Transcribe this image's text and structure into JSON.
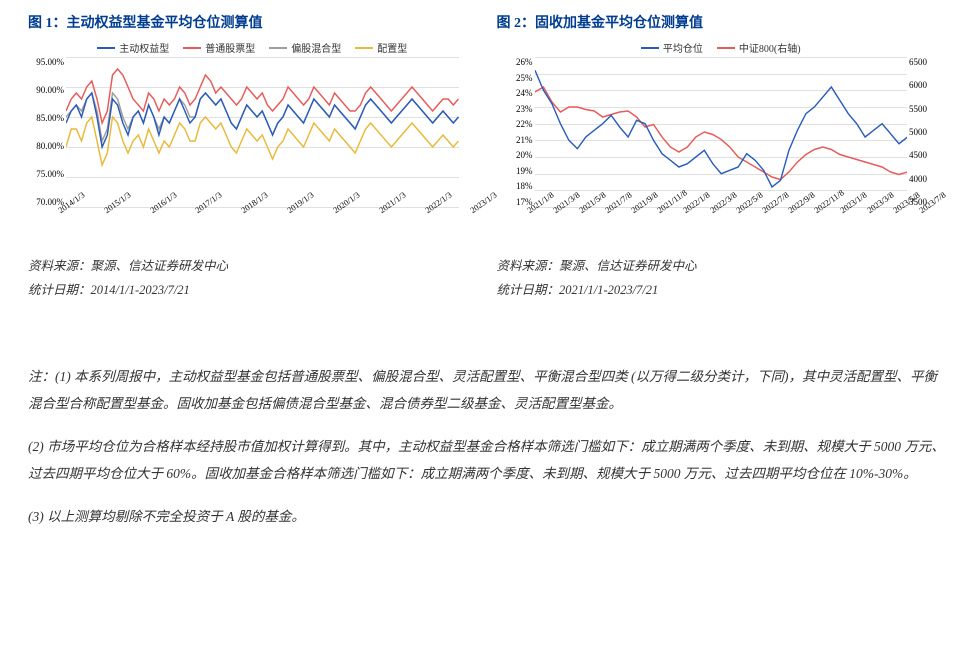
{
  "chart1": {
    "title": "图 1：主动权益型基金平均仓位测算值",
    "type": "line",
    "legend": [
      {
        "label": "主动权益型",
        "color": "#2a5cbb"
      },
      {
        "label": "普通股票型",
        "color": "#e85a5a"
      },
      {
        "label": "偏股混合型",
        "color": "#9e9e9e"
      },
      {
        "label": "配置型",
        "color": "#e8b93a"
      }
    ],
    "y_ticks": [
      "95.00%",
      "90.00%",
      "85.00%",
      "80.00%",
      "75.00%",
      "70.00%"
    ],
    "ylim": [
      70,
      95
    ],
    "x_labels": [
      "2014/1/3",
      "2015/1/3",
      "2016/1/3",
      "2017/1/3",
      "2018/1/3",
      "2019/1/3",
      "2020/1/3",
      "2021/1/3",
      "2022/1/3",
      "2023/1/3"
    ],
    "grid_color": "#e0e0e0",
    "background": "#ffffff",
    "line_width": 1.5,
    "source_line1": "资料来源：聚源、信达证券研发中心",
    "source_line2": "统计日期：2014/1/1-2023/7/21",
    "series": {
      "active": [
        84,
        86,
        87,
        85,
        88,
        89,
        85,
        80,
        82,
        88,
        87,
        84,
        82,
        85,
        86,
        84,
        87,
        85,
        82,
        85,
        84,
        86,
        88,
        86,
        84,
        85,
        88,
        89,
        88,
        87,
        88,
        86,
        84,
        83,
        85,
        87,
        86,
        85,
        86,
        84,
        82,
        84,
        85,
        87,
        86,
        85,
        84,
        86,
        88,
        87,
        86,
        85,
        87,
        86,
        85,
        84,
        83,
        85,
        87,
        88,
        87,
        86,
        85,
        84,
        85,
        86,
        87,
        88,
        87,
        86,
        85,
        84,
        85,
        86,
        85,
        84,
        85
      ],
      "stock": [
        86,
        88,
        89,
        88,
        90,
        91,
        88,
        84,
        86,
        92,
        93,
        92,
        90,
        88,
        87,
        86,
        89,
        88,
        86,
        88,
        87,
        88,
        90,
        89,
        87,
        88,
        90,
        92,
        91,
        89,
        90,
        89,
        88,
        87,
        88,
        90,
        89,
        88,
        89,
        87,
        86,
        87,
        88,
        90,
        89,
        88,
        87,
        88,
        90,
        89,
        88,
        87,
        89,
        88,
        87,
        86,
        86,
        87,
        89,
        90,
        89,
        88,
        87,
        86,
        87,
        88,
        89,
        90,
        89,
        88,
        87,
        86,
        87,
        88,
        88,
        87,
        88
      ],
      "partial": [
        85,
        86,
        87,
        86,
        88,
        89,
        86,
        81,
        83,
        89,
        88,
        85,
        83,
        85,
        86,
        84,
        87,
        85,
        83,
        85,
        84,
        86,
        88,
        87,
        85,
        85,
        88,
        89,
        88,
        87,
        88,
        86,
        84,
        83,
        85,
        87,
        86,
        85,
        86,
        84,
        82,
        84,
        85,
        87,
        86,
        85,
        84,
        86,
        88,
        87,
        86,
        85,
        87,
        86,
        85,
        84,
        83,
        85,
        87,
        88,
        87,
        86,
        85,
        84,
        85,
        86,
        87,
        88,
        87,
        86,
        85,
        84,
        85,
        86,
        85,
        84,
        85
      ],
      "alloc": [
        80,
        83,
        83,
        81,
        84,
        85,
        81,
        77,
        79,
        85,
        84,
        81,
        79,
        81,
        82,
        80,
        83,
        81,
        79,
        81,
        80,
        82,
        84,
        83,
        81,
        81,
        84,
        85,
        84,
        83,
        84,
        82,
        80,
        79,
        81,
        83,
        82,
        81,
        82,
        80,
        78,
        80,
        81,
        83,
        82,
        81,
        80,
        82,
        84,
        83,
        82,
        81,
        83,
        82,
        81,
        80,
        79,
        81,
        83,
        84,
        83,
        82,
        81,
        80,
        81,
        82,
        83,
        84,
        83,
        82,
        81,
        80,
        81,
        82,
        81,
        80,
        81
      ]
    }
  },
  "chart2": {
    "title": "图 2：固收加基金平均仓位测算值",
    "type": "line_dual_axis",
    "legend": [
      {
        "label": "平均仓位",
        "color": "#2a5cbb"
      },
      {
        "label": "中证800(右轴)",
        "color": "#e85a5a"
      }
    ],
    "y_ticks_left": [
      "26%",
      "25%",
      "24%",
      "23%",
      "22%",
      "21%",
      "20%",
      "19%",
      "18%",
      "17%"
    ],
    "ylim_left": [
      17,
      26
    ],
    "y_ticks_right": [
      "6500",
      "6000",
      "5500",
      "5000",
      "4500",
      "4000",
      "3500"
    ],
    "ylim_right": [
      3500,
      6500
    ],
    "x_labels": [
      "2021/1/8",
      "2021/3/8",
      "2021/5/8",
      "2021/7/8",
      "2021/9/8",
      "2021/11/8",
      "2022/1/8",
      "2022/3/8",
      "2022/5/8",
      "2022/7/8",
      "2022/9/8",
      "2022/11/8",
      "2023/1/8",
      "2023/3/8",
      "2023/5/8",
      "2023/7/8"
    ],
    "grid_color": "#e0e0e0",
    "background": "#ffffff",
    "line_width": 1.5,
    "source_line1": "资料来源：聚源、信达证券研发中心",
    "source_line2": "统计日期：2021/1/1-2023/7/21",
    "series": {
      "pos": [
        25.2,
        24.0,
        23.2,
        22.0,
        21.0,
        20.5,
        21.2,
        21.6,
        22.0,
        22.5,
        21.8,
        21.2,
        22.2,
        22.0,
        21.0,
        20.2,
        19.8,
        19.4,
        19.6,
        20.0,
        20.4,
        19.6,
        19.0,
        19.2,
        19.4,
        20.2,
        19.8,
        19.2,
        18.2,
        18.6,
        20.4,
        21.6,
        22.6,
        23.0,
        23.6,
        24.2,
        23.4,
        22.6,
        22.0,
        21.2,
        21.6,
        22.0,
        21.4,
        20.8,
        21.2
      ],
      "csi800": [
        5800,
        5900,
        5600,
        5400,
        5500,
        5500,
        5450,
        5420,
        5300,
        5350,
        5400,
        5420,
        5300,
        5100,
        5150,
        4900,
        4700,
        4600,
        4700,
        4900,
        5000,
        4950,
        4850,
        4700,
        4500,
        4400,
        4300,
        4200,
        4100,
        4050,
        4200,
        4400,
        4550,
        4650,
        4700,
        4650,
        4550,
        4500,
        4450,
        4400,
        4350,
        4300,
        4200,
        4150,
        4200
      ]
    }
  },
  "notes": {
    "n1": "注：(1) 本系列周报中，主动权益型基金包括普通股票型、偏股混合型、灵活配置型、平衡混合型四类 (以万得二级分类计，下同)，其中灵活配置型、平衡混合型合称配置型基金。固收加基金包括偏债混合型基金、混合债券型二级基金、灵活配置型基金。",
    "n2": "(2) 市场平均仓位为合格样本经持股市值加权计算得到。其中，主动权益型基金合格样本筛选门槛如下：成立期满两个季度、未到期、规模大于 5000 万元、过去四期平均仓位大于 60%。固收加基金合格样本筛选门槛如下：成立期满两个季度、未到期、规模大于 5000 万元、过去四期平均仓位在 10%-30%。",
    "n3": "(3) 以上测算均剔除不完全投资于 A 股的基金。"
  }
}
